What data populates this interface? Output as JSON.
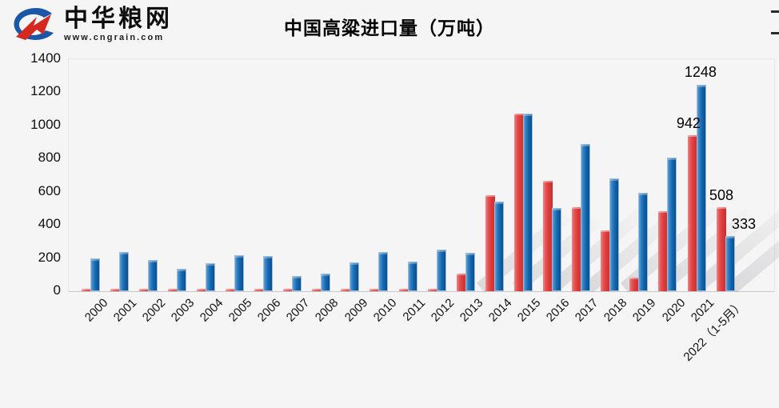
{
  "page": {
    "background": "#f5f5f6"
  },
  "header": {
    "logo": {
      "name_text": "中华粮网",
      "url_text": "www.cngrain.com",
      "mark_blue": "#1b57a6",
      "mark_red": "#d5281e"
    },
    "title": "中国高粱进口量（万吨）"
  },
  "chart_data": {
    "type": "bar",
    "title": "中国高粱进口量（万吨）",
    "categories": [
      "2000",
      "2001",
      "2002",
      "2003",
      "2004",
      "2005",
      "2006",
      "2007",
      "2008",
      "2009",
      "2010",
      "2011",
      "2012",
      "2013",
      "2014",
      "2015",
      "2016",
      "2017",
      "2018",
      "2019",
      "2020",
      "2021",
      "2022（1-5月）"
    ],
    "series": [
      {
        "name": "red",
        "color": "#dc3a3a",
        "values": [
          3,
          3,
          2,
          2,
          2,
          2,
          5,
          5,
          7,
          6,
          6,
          8,
          9,
          108,
          578,
          1070,
          665,
          506,
          365,
          80,
          481,
          942,
          508
        ]
      },
      {
        "name": "blue",
        "color": "#1266ae",
        "values": [
          196,
          237,
          186,
          136,
          171,
          218,
          213,
          91,
          108,
          173,
          237,
          178,
          253,
          233,
          541,
          1073,
          500,
          886,
          682,
          593,
          808,
          1248,
          333
        ]
      }
    ],
    "ylim": [
      0,
      1400
    ],
    "y_tick_step": 200,
    "y_ticks": [
      "0",
      "200",
      "400",
      "600",
      "800",
      "1000",
      "1200",
      "1400"
    ],
    "xlabel": "",
    "ylabel": "",
    "grid": false,
    "legend": "none",
    "x_tick_rotation": -45,
    "value_labels": [
      {
        "text": "1248",
        "series": "blue",
        "category_index": 21,
        "dx": 0
      },
      {
        "text": "942",
        "series": "red",
        "category_index": 21,
        "dx": -3
      },
      {
        "text": "508",
        "series": "red",
        "category_index": 22,
        "dx": 2
      },
      {
        "text": "333",
        "series": "blue",
        "category_index": 22,
        "dx": 18
      }
    ]
  }
}
